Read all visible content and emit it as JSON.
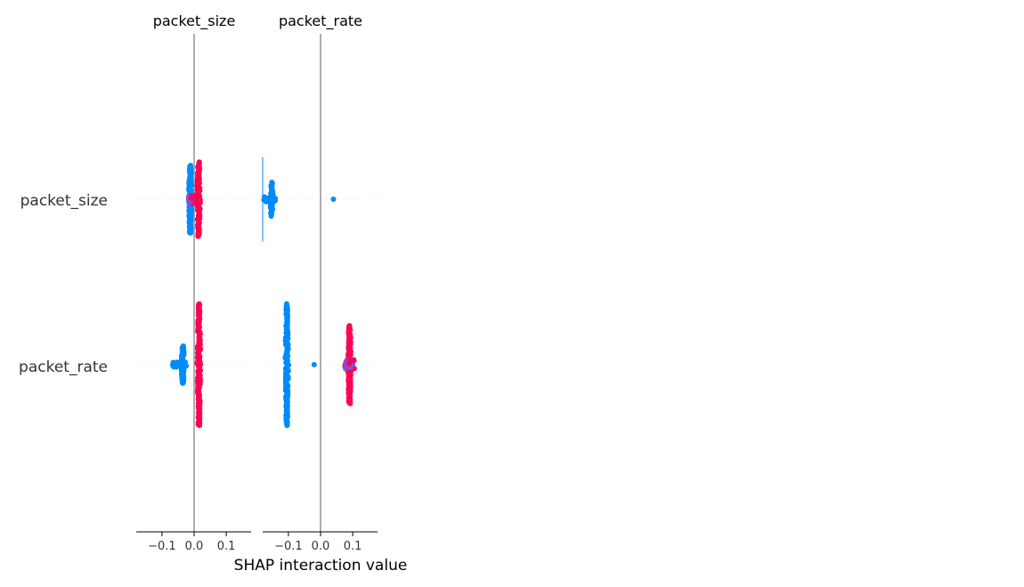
{
  "chart_data": {
    "type": "scatter",
    "subtype": "shap-interaction-beeswarm",
    "xlabel": "SHAP interaction value",
    "xlim": [
      -0.18,
      0.18
    ],
    "xticks": [
      -0.1,
      0.0,
      0.1
    ],
    "xtick_labels": [
      "−0.1",
      "0.0",
      "0.1"
    ],
    "row_labels": [
      "packet_size",
      "packet_rate"
    ],
    "grid": false,
    "colors": {
      "low": "#008bfb",
      "high": "#ff0052",
      "mid": "#8a4bd0",
      "zero_line": "#999999",
      "text": "#333333"
    },
    "panels": [
      {
        "title": "packet_size",
        "rows": [
          {
            "feature": "packet_size",
            "bands": [
              {
                "x": -0.012,
                "spread": 0.4,
                "low_ratio": 1.0,
                "n": 160
              },
              {
                "x": 0.014,
                "spread": 0.44,
                "low_ratio": 0.0,
                "n": 110
              }
            ],
            "clusters": [
              {
                "x": -0.005,
                "xspread": 0.025,
                "spread": 0.1,
                "color": "mix",
                "n": 40
              }
            ],
            "outliers": []
          },
          {
            "feature": "packet_rate",
            "bands": [
              {
                "x": -0.035,
                "spread": 0.22,
                "low_ratio": 1.0,
                "n": 80
              },
              {
                "x": 0.015,
                "spread": 0.72,
                "low_ratio": 0.0,
                "n": 160
              }
            ],
            "clusters": [
              {
                "x": -0.045,
                "xspread": 0.045,
                "spread": 0.06,
                "color": "low",
                "n": 30
              }
            ],
            "outliers": []
          }
        ]
      },
      {
        "title": "packet_rate",
        "rows": [
          {
            "feature": "packet_size",
            "bands": [
              {
                "x": -0.152,
                "spread": 0.2,
                "low_ratio": 1.0,
                "n": 40
              }
            ],
            "clusters": [
              {
                "x": -0.16,
                "xspread": 0.04,
                "spread": 0.06,
                "color": "low",
                "n": 25
              }
            ],
            "outliers": [
              {
                "x": 0.04,
                "color": "low"
              }
            ],
            "whisker": {
              "x": -0.18,
              "spread": 0.5
            }
          },
          {
            "feature": "packet_rate",
            "bands": [
              {
                "x": -0.105,
                "spread": 0.72,
                "low_ratio": 1.0,
                "n": 160
              },
              {
                "x": 0.09,
                "spread": 0.46,
                "low_ratio": 0.0,
                "n": 130
              }
            ],
            "clusters": [
              {
                "x": 0.09,
                "xspread": 0.03,
                "spread": 0.12,
                "color": "mix",
                "n": 40
              }
            ],
            "outliers": [
              {
                "x": -0.02,
                "color": "low"
              }
            ]
          }
        ]
      }
    ]
  }
}
